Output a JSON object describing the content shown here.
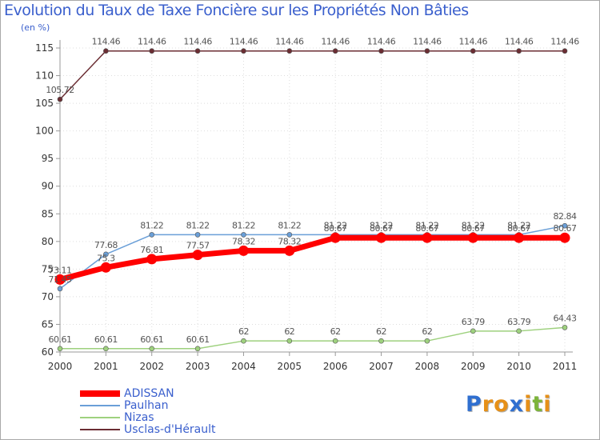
{
  "chart_data": {
    "type": "line",
    "title": "Evolution du Taux de Taxe Foncière sur les Propriétés Non Bâties",
    "subtitle": "(en %)",
    "x": [
      "2000",
      "2001",
      "2002",
      "2003",
      "2004",
      "2005",
      "2006",
      "2007",
      "2008",
      "2009",
      "2010",
      "2011"
    ],
    "ylim": [
      60,
      115
    ],
    "yticks": [
      60,
      65,
      70,
      75,
      80,
      85,
      90,
      95,
      100,
      105,
      110,
      115
    ],
    "grid": true,
    "legend_position": "bottom-left",
    "series": [
      {
        "name": "ADISSAN",
        "color": "#ff0000",
        "values": [
          73.11,
          75.3,
          76.81,
          77.57,
          78.32,
          78.32,
          80.67,
          80.67,
          80.67,
          80.67,
          80.67,
          80.67
        ],
        "labels": [
          "73.11",
          "75.3",
          "76.81",
          "77.57",
          "78.32",
          "78.32",
          "80.67",
          "80.67",
          "80.67",
          "80.67",
          "80.67",
          "80.67"
        ]
      },
      {
        "name": "Paulhan",
        "color": "#6a9fd8",
        "values": [
          71.45,
          77.68,
          81.22,
          81.22,
          81.22,
          81.22,
          81.22,
          81.22,
          81.22,
          81.22,
          81.22,
          82.84
        ],
        "labels": [
          "71.45",
          "77.68",
          "81.22",
          "81.22",
          "81.22",
          "81.22",
          "81.22",
          "81.22",
          "81.22",
          "81.22",
          "81.22",
          "82.84"
        ]
      },
      {
        "name": "Nizas",
        "color": "#9ed17e",
        "values": [
          60.61,
          60.61,
          60.61,
          60.61,
          62,
          62,
          62,
          62,
          62,
          63.79,
          63.79,
          64.43
        ],
        "labels": [
          "60.61",
          "60.61",
          "60.61",
          "60.61",
          "62",
          "62",
          "62",
          "62",
          "62",
          "63.79",
          "63.79",
          "64.43"
        ]
      },
      {
        "name": "Usclas-d'Hérault",
        "color": "#6b2d33",
        "values": [
          105.72,
          114.46,
          114.46,
          114.46,
          114.46,
          114.46,
          114.46,
          114.46,
          114.46,
          114.46,
          114.46,
          114.46
        ],
        "labels": [
          "105.72",
          "114.46",
          "114.46",
          "114.46",
          "114.46",
          "114.46",
          "114.46",
          "114.46",
          "114.46",
          "114.46",
          "114.46",
          "114.46"
        ]
      }
    ]
  },
  "logo": {
    "letters": [
      "P",
      "r",
      "o",
      "x",
      "i",
      "t",
      "i"
    ],
    "colors": [
      "#2f6fd0",
      "#e69018",
      "#e69018",
      "#2f6fd0",
      "#e69018",
      "#7cb43a",
      "#e69018"
    ]
  }
}
